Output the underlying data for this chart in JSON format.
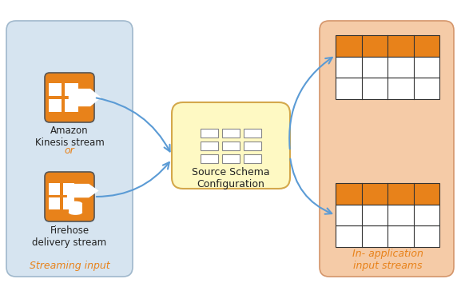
{
  "bg_color": "#ffffff",
  "left_panel_color": "#d6e4f0",
  "left_panel_edge": "#a0b8cc",
  "right_panel_color": "#f5cba7",
  "right_panel_edge": "#d4956a",
  "center_box_color": "#fef9c3",
  "center_box_edge": "#d4a84b",
  "orange": "#e8821a",
  "arrow_color": "#5b9bd5",
  "text_color": "#000000",
  "orange_text": "#e8821a",
  "left_label": "Streaming input",
  "right_label": "In- application\ninput streams",
  "center_label": "Source Schema\nConfiguration",
  "kinesis_label": "Amazon\nKinesis stream",
  "or_label": "or",
  "firehose_label": "Firehose\ndelivery stream"
}
